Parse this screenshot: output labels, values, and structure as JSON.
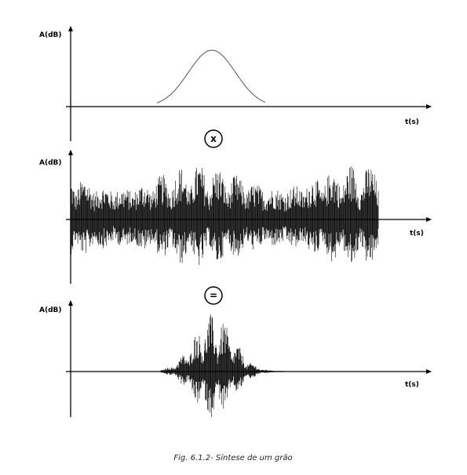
{
  "panels": [
    {
      "y_label": "A(dB)",
      "x_label": "t(s)"
    },
    {
      "y_label": "A(dB)",
      "x_label": "t(s)"
    },
    {
      "y_label": "A(dB)",
      "x_label": "t(s)"
    }
  ],
  "operators": [
    "x",
    "="
  ],
  "caption": "Fig. 6.1.2- Síntese de um grão"
}
